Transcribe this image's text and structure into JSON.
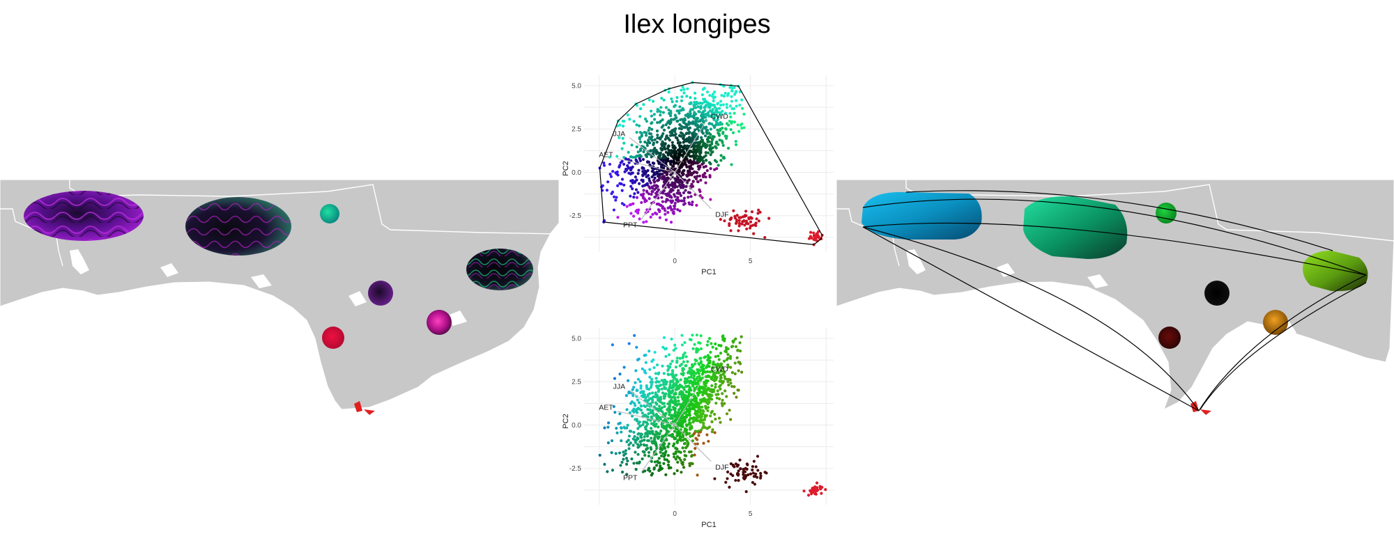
{
  "title": "Ilex longipes",
  "colors": {
    "land": "#c8c8c8",
    "water": "#ffffff",
    "outlier_red": "#dd1b2b",
    "hull": "#000000",
    "grid": "#ebebeb"
  },
  "chart_data": [
    {
      "type": "scatter",
      "panel": "pca-top",
      "xlabel": "PC1",
      "ylabel": "PC2",
      "xlim": [
        -6,
        10.5
      ],
      "ylim": [
        -4.6,
        5.6
      ],
      "xticks": [
        0,
        5
      ],
      "yticks": [
        5.0,
        2.5,
        0.0,
        -2.5
      ],
      "xtick_labels": [
        "0",
        "5"
      ],
      "ytick_labels": [
        "5.0",
        "2.5",
        "0.0",
        "-2.5"
      ],
      "grid": true,
      "coloring": "radial gradient by PCA position (black center; cyan, green, magenta, purple edges)",
      "convex_hull": true,
      "clusters": [
        {
          "center": [
            0.3,
            0.8
          ],
          "spread": [
            2.3,
            1.9
          ],
          "count": 1400,
          "color_mode": "radial"
        },
        {
          "center": [
            9.3,
            -3.75
          ],
          "spread": [
            0.25,
            0.18
          ],
          "count": 30,
          "color": "#dd1b2b"
        },
        {
          "center": [
            4.6,
            -2.75
          ],
          "spread": [
            0.65,
            0.35
          ],
          "count": 60,
          "color": "#c41425"
        }
      ],
      "loadings": [
        {
          "label": "CWD",
          "x": 2.1,
          "y": 3.0
        },
        {
          "label": "JJA",
          "x": -3.0,
          "y": 2.0
        },
        {
          "label": "AET",
          "x": -3.8,
          "y": 0.8
        },
        {
          "label": "PPT",
          "x": -2.2,
          "y": -2.7
        },
        {
          "label": "DJF",
          "x": 2.4,
          "y": -2.1
        }
      ]
    },
    {
      "type": "scatter",
      "panel": "pca-bottom",
      "xlabel": "PC1",
      "ylabel": "PC2",
      "xlim": [
        -6,
        10.5
      ],
      "ylim": [
        -4.6,
        5.6
      ],
      "xticks": [
        0,
        5
      ],
      "yticks": [
        5.0,
        2.5,
        0.0,
        -2.5
      ],
      "xtick_labels": [
        "0",
        "5"
      ],
      "ytick_labels": [
        "5.0",
        "2.5",
        "0.0",
        "-2.5"
      ],
      "grid": true,
      "coloring": "linear gradient by PCA position (blue left, teal/green top, yellow-green right, dark brown bottom-right, orange)",
      "convex_hull": false,
      "clusters": [
        {
          "center": [
            0.3,
            0.8
          ],
          "spread": [
            2.3,
            1.9
          ],
          "count": 1400,
          "color_mode": "linear"
        },
        {
          "center": [
            9.3,
            -3.75
          ],
          "spread": [
            0.25,
            0.18
          ],
          "count": 30,
          "color": "#dd1b2b"
        },
        {
          "center": [
            4.6,
            -2.75
          ],
          "spread": [
            0.65,
            0.35
          ],
          "count": 60,
          "color": "#4a0c0c"
        }
      ],
      "loadings": [
        {
          "label": "CWD",
          "x": 2.1,
          "y": 3.0
        },
        {
          "label": "JJA",
          "x": -3.0,
          "y": 2.0
        },
        {
          "label": "AET",
          "x": -3.8,
          "y": 0.8
        },
        {
          "label": "PPT",
          "x": -2.2,
          "y": -2.7
        },
        {
          "label": "DJF",
          "x": 2.4,
          "y": -2.1
        }
      ]
    }
  ]
}
